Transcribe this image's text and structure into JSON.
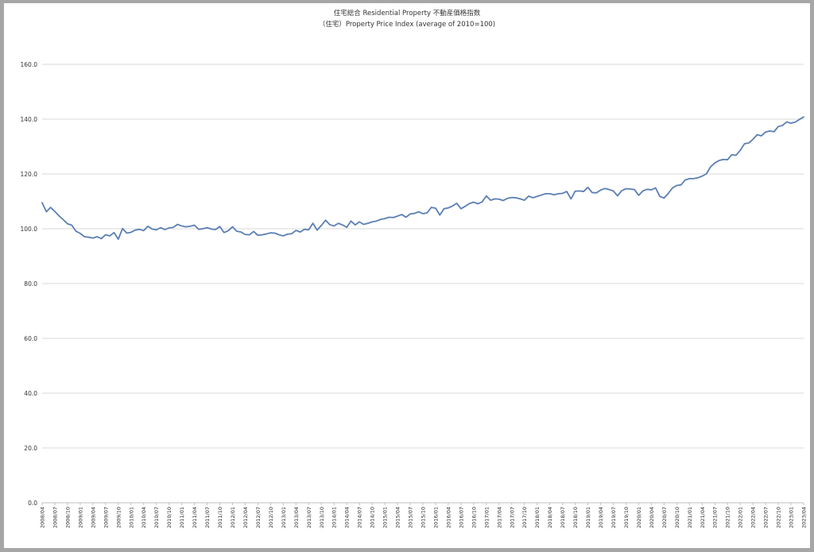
{
  "chart_data": {
    "type": "line",
    "title": "住宅総合 Residential Property 不動産価格指数",
    "subtitle": "（住宅）Property Price Index (average of 2010=100)",
    "ylim": [
      0,
      160
    ],
    "yticks": [
      "0.0",
      "20.0",
      "40.0",
      "60.0",
      "80.0",
      "100.0",
      "120.0",
      "140.0",
      "160.0"
    ],
    "grid": true,
    "line_color": "#5b7fb4",
    "start": "2008/04",
    "xtick_labels": [
      "2008/04",
      "2008/07",
      "2008/10",
      "2009/01",
      "2009/04",
      "2009/07",
      "2009/10",
      "2010/01",
      "2010/04",
      "2010/07",
      "2010/10",
      "2011/01",
      "2011/04",
      "2011/07",
      "2011/10",
      "2012/01",
      "2012/04",
      "2012/07",
      "2012/10",
      "2013/01",
      "2013/04",
      "2013/07",
      "2013/10",
      "2014/01",
      "2014/04",
      "2014/07",
      "2014/10",
      "2015/01",
      "2015/04",
      "2015/07",
      "2015/10",
      "2016/01",
      "2016/04",
      "2016/07",
      "2016/10",
      "2017/01",
      "2017/04",
      "2017/07",
      "2017/10",
      "2018/01",
      "2018/04",
      "2018/07",
      "2018/10",
      "2019/01",
      "2019/04",
      "2019/07",
      "2019/10",
      "2020/01",
      "2020/04",
      "2020/07",
      "2020/10",
      "2021/01",
      "2021/04",
      "2021/07",
      "2021/10",
      "2022/01",
      "2022/04",
      "2022/07",
      "2022/10",
      "2023/01",
      "2023/04"
    ],
    "values": [
      109.5,
      106.2,
      107.8,
      106.3,
      104.7,
      103.3,
      101.8,
      101.3,
      99.1,
      98.3,
      97.1,
      96.9,
      96.6,
      97.1,
      96.4,
      97.8,
      97.4,
      98.6,
      96.2,
      100.1,
      98.4,
      98.7,
      99.5,
      99.8,
      99.3,
      100.9,
      99.9,
      99.6,
      100.4,
      99.7,
      100.3,
      100.5,
      101.6,
      101.0,
      100.7,
      100.9,
      101.3,
      99.8,
      100.0,
      100.4,
      99.9,
      99.7,
      100.8,
      98.6,
      99.3,
      100.7,
      99.1,
      98.8,
      97.9,
      97.8,
      99.0,
      97.6,
      97.8,
      98.1,
      98.5,
      98.4,
      97.8,
      97.4,
      98.0,
      98.2,
      99.4,
      98.8,
      99.8,
      99.6,
      102.0,
      99.5,
      101.2,
      103.1,
      101.5,
      101.0,
      102.0,
      101.4,
      100.5,
      102.8,
      101.4,
      102.5,
      101.6,
      102.0,
      102.5,
      102.8,
      103.4,
      103.7,
      104.2,
      104.1,
      104.6,
      105.2,
      104.2,
      105.4,
      105.6,
      106.2,
      105.5,
      105.8,
      107.8,
      107.5,
      105.0,
      107.3,
      107.6,
      108.3,
      109.3,
      107.3,
      108.2,
      109.2,
      109.7,
      109.1,
      109.8,
      112.0,
      110.4,
      110.9,
      110.8,
      110.3,
      111.1,
      111.4,
      111.3,
      110.9,
      110.4,
      111.9,
      111.3,
      111.8,
      112.3,
      112.8,
      112.8,
      112.4,
      112.8,
      112.9,
      113.6,
      110.9,
      113.7,
      113.8,
      113.6,
      115.1,
      113.2,
      113.1,
      114.1,
      114.7,
      114.3,
      113.8,
      112.0,
      113.9,
      114.6,
      114.5,
      114.3,
      112.2,
      113.8,
      114.4,
      114.2,
      114.9,
      111.8,
      111.2,
      112.9,
      114.9,
      115.8,
      116.0,
      117.8,
      118.3,
      118.3,
      118.6,
      119.2,
      120.0,
      122.6,
      124.0,
      124.9,
      125.3,
      125.2,
      127.0,
      126.8,
      128.6,
      131.0,
      131.3,
      132.6,
      134.3,
      133.9,
      135.3,
      135.7,
      135.4,
      137.3,
      137.7,
      139.0,
      138.5,
      138.9,
      139.9,
      140.8
    ]
  }
}
